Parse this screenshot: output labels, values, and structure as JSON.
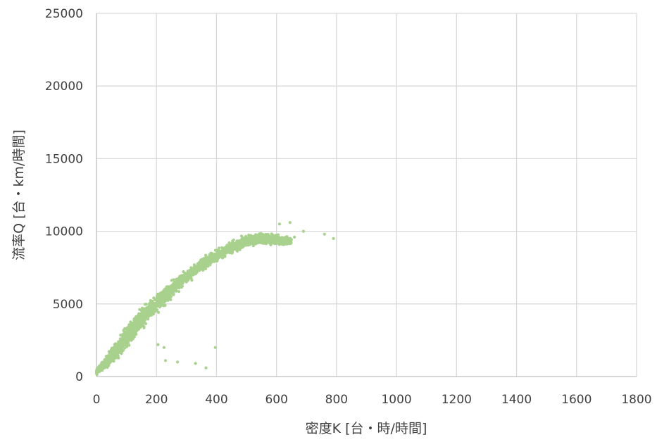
{
  "chart_data": {
    "type": "scatter",
    "title": "",
    "xlabel": "密度K [台・時/時間]",
    "ylabel": "流率Q [台・km/時間]",
    "xlim": [
      0,
      1800
    ],
    "ylim": [
      0,
      25000
    ],
    "x_ticks": [
      "0",
      "200",
      "400",
      "600",
      "800",
      "1000",
      "1200",
      "1400",
      "1600",
      "1800"
    ],
    "y_ticks": [
      "0",
      "5000",
      "10000",
      "15000",
      "20000",
      "25000"
    ],
    "grid": true,
    "legend": "none",
    "marker_color": "#a9d18e",
    "series": [
      {
        "envelope": {
          "x": [
            0,
            50,
            100,
            150,
            200,
            250,
            300,
            350,
            400,
            450,
            500,
            550,
            600,
            650
          ],
          "y_center": [
            300,
            1400,
            2700,
            4000,
            5000,
            6000,
            6900,
            7700,
            8300,
            8900,
            9300,
            9500,
            9400,
            9300
          ],
          "y_spread": [
            300,
            800,
            1200,
            1100,
            1000,
            900,
            800,
            700,
            700,
            700,
            600,
            600,
            500,
            400
          ]
        },
        "outliers": [
          {
            "x": 396,
            "y": 2000
          },
          {
            "x": 365,
            "y": 600
          },
          {
            "x": 330,
            "y": 900
          },
          {
            "x": 270,
            "y": 1000
          },
          {
            "x": 225,
            "y": 2000
          },
          {
            "x": 205,
            "y": 2200
          },
          {
            "x": 230,
            "y": 1100
          },
          {
            "x": 760,
            "y": 9800
          },
          {
            "x": 790,
            "y": 9500
          },
          {
            "x": 690,
            "y": 10000
          },
          {
            "x": 660,
            "y": 9600
          },
          {
            "x": 645,
            "y": 10600
          },
          {
            "x": 610,
            "y": 10500
          },
          {
            "x": 630,
            "y": 9300
          }
        ]
      }
    ]
  }
}
